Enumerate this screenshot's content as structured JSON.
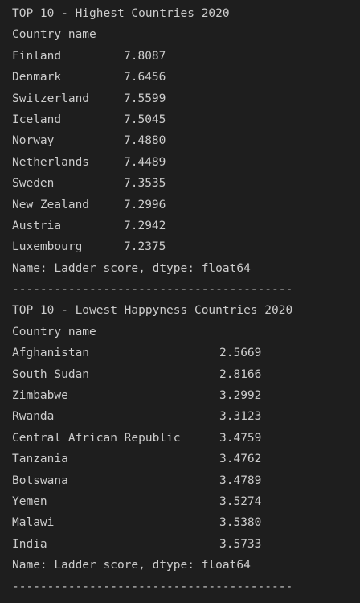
{
  "top": {
    "title": "TOP 10 - Highest Countries 2020",
    "index_name": "Country name",
    "rows": [
      {
        "country": "Finland",
        "score": "7.8087"
      },
      {
        "country": "Denmark",
        "score": "7.6456"
      },
      {
        "country": "Switzerland",
        "score": "7.5599"
      },
      {
        "country": "Iceland",
        "score": "7.5045"
      },
      {
        "country": "Norway",
        "score": "7.4880"
      },
      {
        "country": "Netherlands",
        "score": "7.4489"
      },
      {
        "country": "Sweden",
        "score": "7.3535"
      },
      {
        "country": "New Zealand",
        "score": "7.2996"
      },
      {
        "country": "Austria",
        "score": "7.2942"
      },
      {
        "country": "Luxembourg",
        "score": "7.2375"
      }
    ],
    "footer": "Name: Ladder score, dtype: float64",
    "separator": "----------------------------------------"
  },
  "bottom": {
    "title": "TOP 10 - Lowest Happyness Countries 2020",
    "index_name": "Country name",
    "rows": [
      {
        "country": "Afghanistan",
        "score": "2.5669"
      },
      {
        "country": "South Sudan",
        "score": "2.8166"
      },
      {
        "country": "Zimbabwe",
        "score": "3.2992"
      },
      {
        "country": "Rwanda",
        "score": "3.3123"
      },
      {
        "country": "Central African Republic",
        "score": "3.4759"
      },
      {
        "country": "Tanzania",
        "score": "3.4762"
      },
      {
        "country": "Botswana",
        "score": "3.4789"
      },
      {
        "country": "Yemen",
        "score": "3.5274"
      },
      {
        "country": "Malawi",
        "score": "3.5380"
      },
      {
        "country": "India",
        "score": "3.5733"
      }
    ],
    "footer": "Name: Ladder score, dtype: float64",
    "separator": "----------------------------------------"
  }
}
